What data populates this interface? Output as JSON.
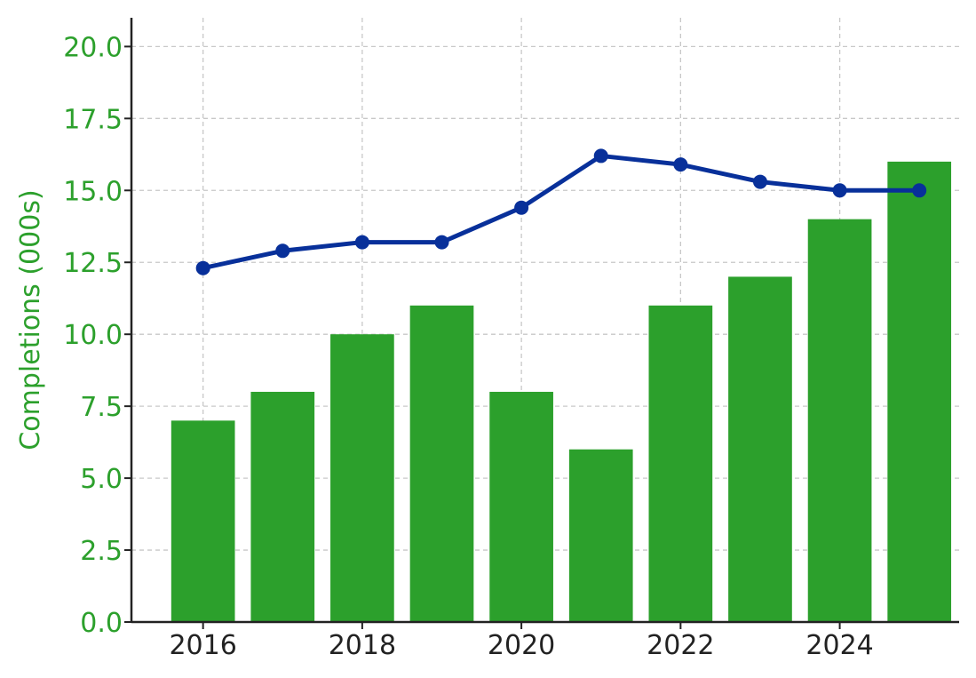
{
  "chart_data": {
    "type": "bar",
    "x": [
      2016,
      2017,
      2018,
      2019,
      2020,
      2021,
      2022,
      2023,
      2024,
      2025
    ],
    "xticks": [
      "2016",
      "2018",
      "2020",
      "2022",
      "2024"
    ],
    "xlim": [
      2015.1,
      2025.5
    ],
    "ylabel": "Completions (000s)",
    "ylim": [
      0,
      21
    ],
    "yticks": [
      "0.0",
      "2.5",
      "5.0",
      "7.5",
      "10.0",
      "12.5",
      "15.0",
      "17.5",
      "20.0"
    ],
    "grid": true,
    "series": [
      {
        "type": "bar",
        "axis": "left",
        "color": "#2ca02c",
        "values": [
          7,
          8,
          10,
          11,
          8,
          6,
          11,
          12,
          14,
          16
        ]
      },
      {
        "type": "line",
        "axis": "left",
        "color": "#08309a",
        "marker": "circle",
        "values": [
          12.3,
          12.9,
          13.2,
          13.2,
          14.4,
          16.2,
          15.9,
          15.3,
          15.0,
          15.0
        ]
      }
    ],
    "colors": {
      "axis": "#222222",
      "ytick_text": "#2ca02c",
      "xtick_text": "#222222",
      "grid": "#c8c8c8"
    }
  }
}
